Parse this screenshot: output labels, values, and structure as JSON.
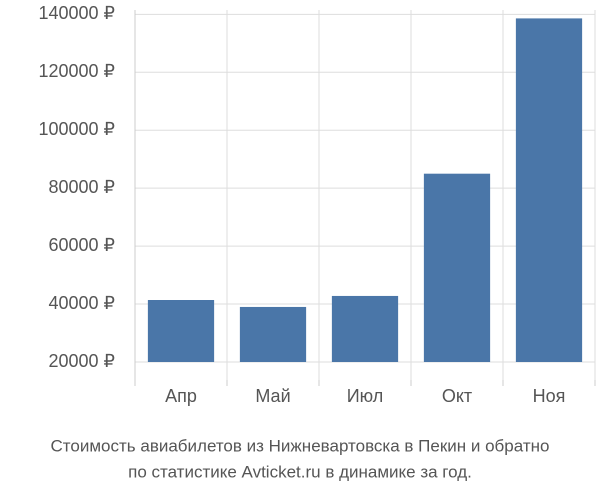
{
  "chart_data": {
    "type": "bar",
    "title": [
      "Стоимость авиабилетов из Нижневартовска в Пекин и обратно",
      "по статистике Avticket.ru в динамике за год."
    ],
    "categories": [
      "Апр",
      "Май",
      "Июл",
      "Окт",
      "Ноя"
    ],
    "values": [
      41400,
      39000,
      42800,
      85000,
      138600
    ],
    "color": "#4a76a8",
    "ylim": [
      20000,
      141500
    ],
    "yticks": [
      {
        "value": 20000,
        "label": "20000 ₽"
      },
      {
        "value": 40000,
        "label": "40000 ₽"
      },
      {
        "value": 60000,
        "label": "60000 ₽"
      },
      {
        "value": 80000,
        "label": "80000 ₽"
      },
      {
        "value": 100000,
        "label": "100000 ₽"
      },
      {
        "value": 120000,
        "label": "120000 ₽"
      },
      {
        "value": 140000,
        "label": "140000 ₽"
      }
    ],
    "grid": true
  }
}
